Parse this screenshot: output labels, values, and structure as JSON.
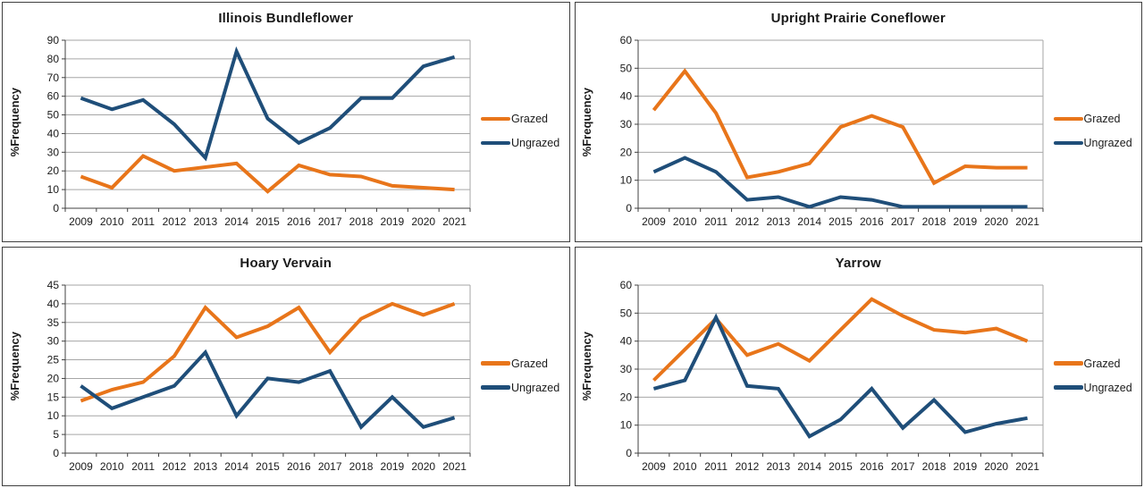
{
  "colors": {
    "grazed": "#e8751a",
    "ungrazed": "#1f4e79",
    "gridline": "#a6a6a6",
    "axis": "#404040",
    "text": "#1a1a1a",
    "panel_border": "#3f3f3f"
  },
  "chart_data": [
    {
      "type": "line",
      "title": "Illinois Bundleflower",
      "xlabel": "",
      "ylabel": "%Frequency",
      "ylim": [
        0,
        90
      ],
      "ystep": 10,
      "grid": true,
      "legend_position": "right",
      "categories": [
        "2009",
        "2010",
        "2011",
        "2012",
        "2013",
        "2014",
        "2015",
        "2016",
        "2017",
        "2018",
        "2019",
        "2020",
        "2021"
      ],
      "series": [
        {
          "name": "Grazed",
          "color_key": "grazed",
          "values": [
            17,
            11,
            28,
            20,
            22,
            24,
            9,
            23,
            18,
            17,
            12,
            11,
            10
          ]
        },
        {
          "name": "Ungrazed",
          "color_key": "ungrazed",
          "values": [
            59,
            53,
            58,
            45,
            27,
            84,
            48,
            35,
            43,
            59,
            59,
            76,
            81
          ]
        }
      ]
    },
    {
      "type": "line",
      "title": "Upright Prairie Coneflower",
      "xlabel": "",
      "ylabel": "%Frequency",
      "ylim": [
        0,
        60
      ],
      "ystep": 10,
      "grid": true,
      "legend_position": "right",
      "categories": [
        "2009",
        "2010",
        "2011",
        "2012",
        "2013",
        "2014",
        "2015",
        "2016",
        "2017",
        "2018",
        "2019",
        "2020",
        "2021"
      ],
      "series": [
        {
          "name": "Grazed",
          "color_key": "grazed",
          "values": [
            35,
            49,
            34,
            11,
            13,
            16,
            29,
            33,
            29,
            9,
            15,
            14.5,
            14.5
          ]
        },
        {
          "name": "Ungrazed",
          "color_key": "ungrazed",
          "values": [
            13,
            18,
            13,
            3,
            4,
            0.5,
            4,
            3,
            0.5,
            0.5,
            0.5,
            0.5,
            0.5
          ]
        }
      ]
    },
    {
      "type": "line",
      "title": "Hoary Vervain",
      "xlabel": "",
      "ylabel": "%Frequency",
      "ylim": [
        0,
        45
      ],
      "ystep": 5,
      "grid": true,
      "legend_position": "right",
      "categories": [
        "2009",
        "2010",
        "2011",
        "2012",
        "2013",
        "2014",
        "2015",
        "2016",
        "2017",
        "2018",
        "2019",
        "2020",
        "2021"
      ],
      "series": [
        {
          "name": "Grazed",
          "color_key": "grazed",
          "values": [
            14,
            17,
            19,
            26,
            39,
            31,
            34,
            39,
            27,
            36,
            40,
            37,
            40
          ]
        },
        {
          "name": "Ungrazed",
          "color_key": "ungrazed",
          "values": [
            18,
            12,
            15,
            18,
            27,
            10,
            20,
            19,
            22,
            7,
            15,
            7,
            9.5
          ]
        }
      ]
    },
    {
      "type": "line",
      "title": "Yarrow",
      "xlabel": "",
      "ylabel": "%Frequency",
      "ylim": [
        0,
        60
      ],
      "ystep": 10,
      "grid": true,
      "legend_position": "right",
      "categories": [
        "2009",
        "2010",
        "2011",
        "2012",
        "2013",
        "2014",
        "2015",
        "2016",
        "2017",
        "2018",
        "2019",
        "2020",
        "2021"
      ],
      "series": [
        {
          "name": "Grazed",
          "color_key": "grazed",
          "values": [
            26,
            37,
            48,
            35,
            39,
            33,
            44,
            55,
            49,
            44,
            43,
            44.5,
            40
          ]
        },
        {
          "name": "Ungrazed",
          "color_key": "ungrazed",
          "values": [
            23,
            26,
            48.5,
            24,
            23,
            6,
            12,
            23,
            9,
            19,
            7.5,
            10.5,
            12.5
          ]
        }
      ]
    }
  ]
}
